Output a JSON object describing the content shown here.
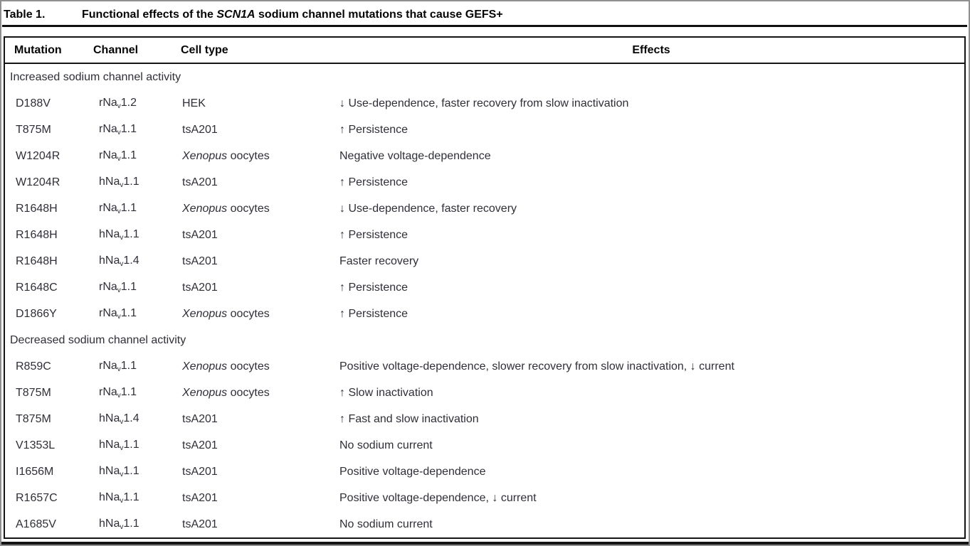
{
  "title": {
    "label": "Table 1.",
    "pre": "Functional effects of the ",
    "italic": "SCN1A",
    "post": " sodium channel mutations that cause GEFS+"
  },
  "columns": {
    "mutation": "Mutation",
    "channel": "Channel",
    "cell_type": "Cell type",
    "effects": "Effects"
  },
  "table": {
    "rows": [
      {
        "kind": "section",
        "label": "Increased sodium channel activity"
      },
      {
        "kind": "row",
        "mutation": "D188V",
        "ch_pre": "rNa",
        "ch_sub": "v",
        "ch_suf": "1.2",
        "cell_i": "",
        "cell_t": "HEK",
        "effect": "↓ Use-dependence, faster recovery from slow inactivation"
      },
      {
        "kind": "row",
        "mutation": "T875M",
        "ch_pre": "rNa",
        "ch_sub": "v",
        "ch_suf": "1.1",
        "cell_i": "",
        "cell_t": "tsA201",
        "effect": "↑ Persistence"
      },
      {
        "kind": "row",
        "mutation": "W1204R",
        "ch_pre": "rNa",
        "ch_sub": "v",
        "ch_suf": "1.1",
        "cell_i": "Xenopus",
        "cell_t": " oocytes",
        "effect": "Negative voltage-dependence"
      },
      {
        "kind": "row",
        "mutation": "W1204R",
        "ch_pre": "hNa",
        "ch_sub": "v",
        "ch_suf": "1.1",
        "cell_i": "",
        "cell_t": "tsA201",
        "effect": "↑ Persistence"
      },
      {
        "kind": "row",
        "mutation": "R1648H",
        "ch_pre": "rNa",
        "ch_sub": "v",
        "ch_suf": "1.1",
        "cell_i": "Xenopus",
        "cell_t": " oocytes",
        "effect": "↓ Use-dependence, faster recovery"
      },
      {
        "kind": "row",
        "mutation": "R1648H",
        "ch_pre": "hNa",
        "ch_sub": "v",
        "ch_suf": "1.1",
        "cell_i": "",
        "cell_t": "tsA201",
        "effect": "↑ Persistence"
      },
      {
        "kind": "row",
        "mutation": "R1648H",
        "ch_pre": "hNa",
        "ch_sub": "v",
        "ch_suf": "1.4",
        "cell_i": "",
        "cell_t": "tsA201",
        "effect": "Faster recovery"
      },
      {
        "kind": "row",
        "mutation": "R1648C",
        "ch_pre": "rNa",
        "ch_sub": "v",
        "ch_suf": "1.1",
        "cell_i": "",
        "cell_t": "tsA201",
        "effect": "↑ Persistence"
      },
      {
        "kind": "row",
        "mutation": "D1866Y",
        "ch_pre": "rNa",
        "ch_sub": "v",
        "ch_suf": "1.1",
        "cell_i": "Xenopus",
        "cell_t": " oocytes",
        "effect": "↑ Persistence"
      },
      {
        "kind": "section",
        "label": "Decreased sodium channel activity"
      },
      {
        "kind": "row",
        "mutation": "R859C",
        "ch_pre": "rNa",
        "ch_sub": "v",
        "ch_suf": "1.1",
        "cell_i": "Xenopus",
        "cell_t": " oocytes",
        "effect": "Positive voltage-dependence, slower recovery from slow inactivation, ↓ current"
      },
      {
        "kind": "row",
        "mutation": "T875M",
        "ch_pre": "rNa",
        "ch_sub": "v",
        "ch_suf": "1.1",
        "cell_i": "Xenopus",
        "cell_t": " oocytes",
        "effect": "↑ Slow inactivation"
      },
      {
        "kind": "row",
        "mutation": "T875M",
        "ch_pre": "hNa",
        "ch_sub": "v",
        "ch_suf": "1.4",
        "cell_i": "",
        "cell_t": "tsA201",
        "effect": "↑ Fast and slow inactivation"
      },
      {
        "kind": "row",
        "mutation": "V1353L",
        "ch_pre": "hNa",
        "ch_sub": "v",
        "ch_suf": "1.1",
        "cell_i": "",
        "cell_t": "tsA201",
        "effect": "No sodium current"
      },
      {
        "kind": "row",
        "mutation": "I1656M",
        "ch_pre": "hNa",
        "ch_sub": "v",
        "ch_suf": "1.1",
        "cell_i": "",
        "cell_t": "tsA201",
        "effect": "Positive voltage-dependence"
      },
      {
        "kind": "row",
        "mutation": "R1657C",
        "ch_pre": "hNa",
        "ch_sub": "v",
        "ch_suf": "1.1",
        "cell_i": "",
        "cell_t": "tsA201",
        "effect": "Positive voltage-dependence, ↓ current"
      },
      {
        "kind": "row",
        "mutation": "A1685V",
        "ch_pre": "hNa",
        "ch_sub": "v",
        "ch_suf": "1.1",
        "cell_i": "",
        "cell_t": "tsA201",
        "effect": "No sodium current"
      }
    ]
  }
}
